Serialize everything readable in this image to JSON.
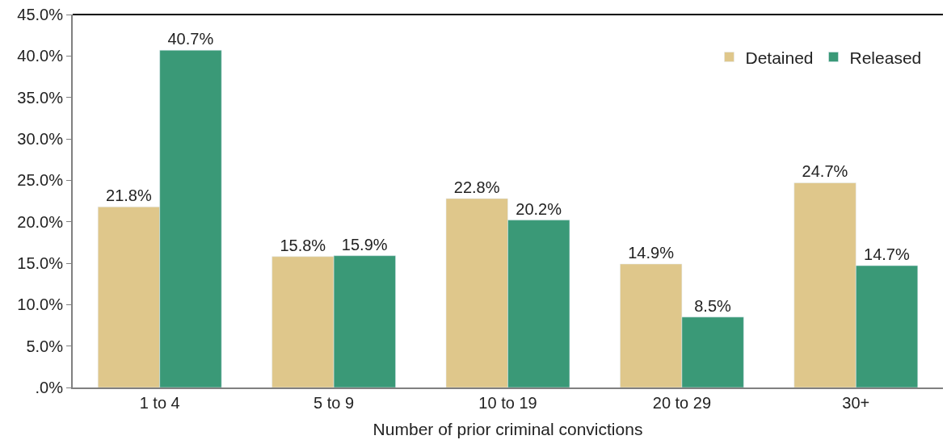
{
  "chart_data": {
    "type": "bar",
    "xlabel": "Number of prior criminal convictions",
    "categories": [
      "1 to 4",
      "5 to 9",
      "10 to 19",
      "20 to 29",
      "30+"
    ],
    "series": [
      {
        "name": "Detained",
        "color": "#dfc78b",
        "values": [
          21.8,
          15.8,
          22.8,
          14.9,
          24.7
        ],
        "value_labels": [
          "21.8%",
          "15.8%",
          "22.8%",
          "14.9%",
          "24.7%"
        ]
      },
      {
        "name": "Released",
        "color": "#3a9977",
        "values": [
          40.7,
          15.9,
          20.2,
          8.5,
          14.7
        ],
        "value_labels": [
          "40.7%",
          "15.9%",
          "20.2%",
          "8.5%",
          "14.7%"
        ]
      }
    ],
    "ylim": [
      0,
      45
    ],
    "yticks": [
      {
        "value": 0,
        "label": ".0%"
      },
      {
        "value": 5,
        "label": "5.0%"
      },
      {
        "value": 10,
        "label": "10.0%"
      },
      {
        "value": 15,
        "label": "15.0%"
      },
      {
        "value": 20,
        "label": "20.0%"
      },
      {
        "value": 25,
        "label": "25.0%"
      },
      {
        "value": 30,
        "label": "30.0%"
      },
      {
        "value": 35,
        "label": "35.0%"
      },
      {
        "value": 40,
        "label": "40.0%"
      },
      {
        "value": 45,
        "label": "45.0%"
      }
    ],
    "legend": "top right"
  }
}
